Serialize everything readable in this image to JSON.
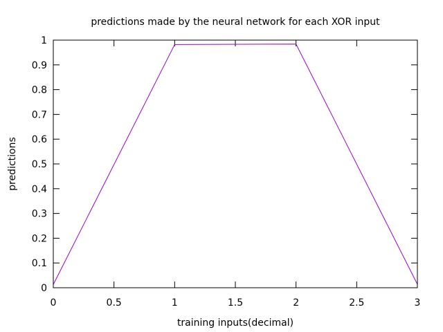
{
  "chart_data": {
    "type": "line",
    "title": "predictions made by the neural network for each XOR input",
    "xlabel": "training inputs(decimal)",
    "ylabel": "predictions",
    "xlim": [
      0,
      3
    ],
    "ylim": [
      0,
      1
    ],
    "xticks": [
      "0",
      "0.5",
      "1",
      "1.5",
      "2",
      "2.5",
      "3"
    ],
    "yticks": [
      "0",
      "0.1",
      "0.2",
      "0.3",
      "0.4",
      "0.5",
      "0.6",
      "0.7",
      "0.8",
      "0.9",
      "1"
    ],
    "grid": false,
    "series": [
      {
        "color": "#9400d3",
        "x": [
          0,
          1,
          2,
          3
        ],
        "y": [
          0.013,
          0.982,
          0.984,
          0.014
        ]
      }
    ]
  }
}
